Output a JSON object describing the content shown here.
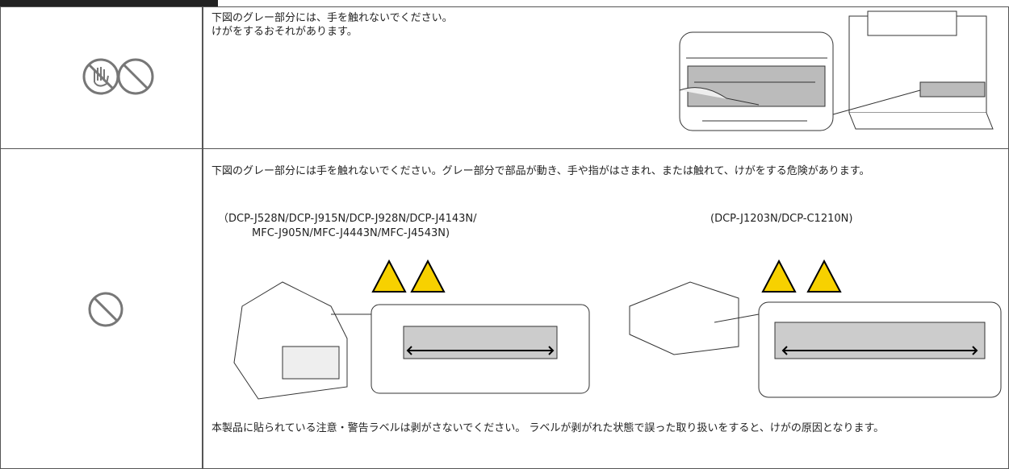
{
  "rows": [
    {
      "text": [
        "下図のグレー部分には、手を触れないでください。",
        "けがをするおそれがあります。"
      ]
    },
    {
      "text": "下図のグレー部分には手を触れないでください。グレー部分で部品が動き、手や指がはさまれ、または触れて、けがをする危険があります。",
      "models": [
        [
          "（DCP-J528N/DCP-J915N/DCP-J928N/DCP-J4143N/",
          "MFC-J905N/MFC-J4443N/MFC-J4543N)"
        ],
        [
          "(DCP-J1203N/DCP-C1210N)"
        ]
      ],
      "note": "本製品に貼られている注意・警告ラベルは剥がさないでください。 ラベルが剥がれた状態で誤った取り扱いをすると、けがの原因となります。"
    }
  ]
}
